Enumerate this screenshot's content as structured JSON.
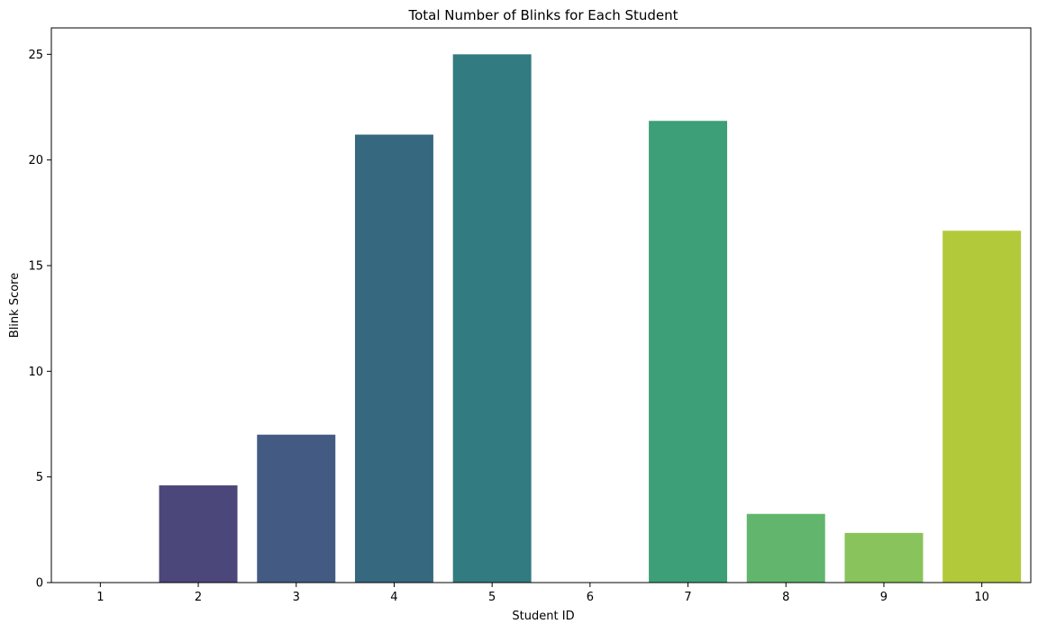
{
  "chart_data": {
    "type": "bar",
    "title": "Total Number of Blinks for Each Student",
    "xlabel": "Student ID",
    "ylabel": "Blink Score",
    "categories": [
      "1",
      "2",
      "3",
      "4",
      "5",
      "6",
      "7",
      "8",
      "9",
      "10"
    ],
    "values": [
      0,
      4.6,
      7.0,
      21.2,
      25.0,
      0,
      21.85,
      3.25,
      2.35,
      16.65
    ],
    "colors": [
      "#440154",
      "#482878",
      "#3e4989",
      "#31688e",
      "#26828e",
      "#1f9e89",
      "#35b779",
      "#6ece58",
      "#b5de2b",
      "#fde725"
    ],
    "bar_colors_observed": [
      "#440154",
      "#4b477b",
      "#435b83",
      "#36687f",
      "#317b81",
      "#2f8e84",
      "#3d9f78",
      "#61b56c",
      "#89c35b",
      "#b2c93a"
    ],
    "ylim": [
      0,
      26.25
    ],
    "yticks": [
      0,
      5,
      10,
      15,
      20,
      25
    ],
    "grid": false,
    "legend": "none"
  }
}
